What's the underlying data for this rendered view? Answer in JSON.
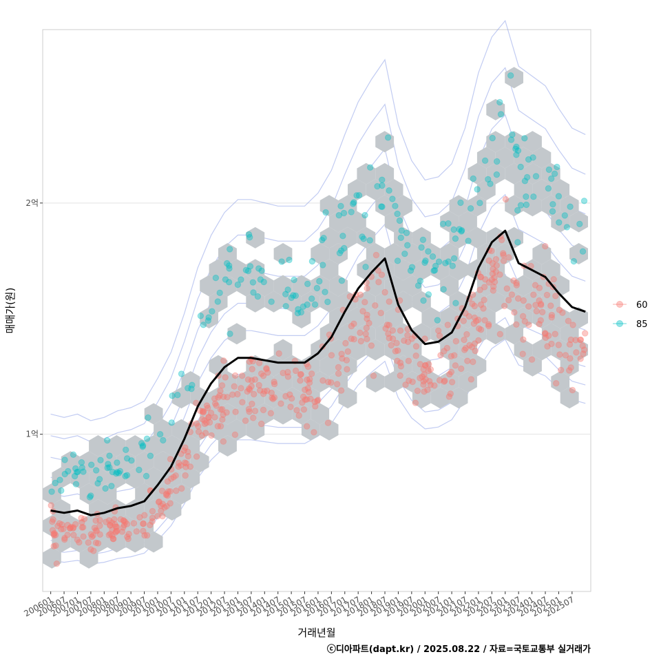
{
  "chart_data": {
    "type": "scatter",
    "xlabel": "거래년월",
    "ylabel": "매매가(원)",
    "x_ticks": [
      "200601",
      "200607",
      "200701",
      "200707",
      "200801",
      "200807",
      "200901",
      "200907",
      "201001",
      "201007",
      "201101",
      "201107",
      "201201",
      "201207",
      "201301",
      "201307",
      "201401",
      "201407",
      "201501",
      "201507",
      "201601",
      "201607",
      "201701",
      "201707",
      "201801",
      "201807",
      "201901",
      "201907",
      "202001",
      "202007",
      "202101",
      "202107",
      "202201",
      "202207",
      "202301",
      "202307",
      "202401",
      "202407",
      "202501",
      "202507"
    ],
    "y_ticks": [
      {
        "value": 1.0,
        "label": "1억"
      },
      {
        "value": 2.0,
        "label": "2억"
      }
    ],
    "ylim": [
      0.32,
      2.75
    ],
    "xlim": [
      -0.6,
      40.4
    ],
    "legend": [
      {
        "name": "60",
        "color": "#F8766D"
      },
      {
        "name": "85",
        "color": "#00BFC4"
      }
    ],
    "trend_line": {
      "name": "월별 평균 매매가",
      "color": "#000000",
      "values": [
        0.67,
        0.66,
        0.67,
        0.65,
        0.66,
        0.68,
        0.69,
        0.71,
        0.78,
        0.86,
        0.98,
        1.12,
        1.22,
        1.29,
        1.33,
        1.33,
        1.32,
        1.31,
        1.31,
        1.31,
        1.35,
        1.42,
        1.53,
        1.63,
        1.7,
        1.76,
        1.56,
        1.45,
        1.39,
        1.4,
        1.44,
        1.55,
        1.72,
        1.83,
        1.88,
        1.74,
        1.71,
        1.68,
        1.61,
        1.55,
        1.53
      ]
    },
    "series": [
      {
        "name": "60",
        "color": "#F8766D"
      },
      {
        "name": "85",
        "color": "#00BFC4"
      }
    ],
    "caption": "ⓒ디아파트(dapt.kr) / 2025.08.22 / 자료=국토교통부 실거래가"
  }
}
